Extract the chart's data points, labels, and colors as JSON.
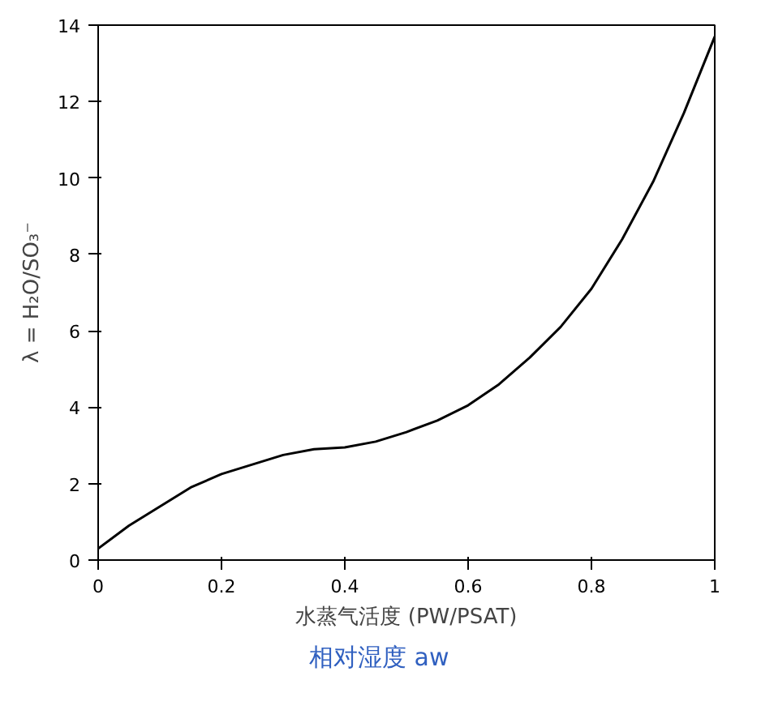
{
  "chart_data": {
    "type": "line",
    "xlabel": "水蒸气活度 (PW/PSAT)",
    "ylabel": "λ = H₂O/SO₃⁻",
    "annotations": [
      "相对湿度 aw"
    ],
    "x": [
      0,
      0.05,
      0.1,
      0.15,
      0.2,
      0.25,
      0.3,
      0.35,
      0.4,
      0.45,
      0.5,
      0.55,
      0.6,
      0.65,
      0.7,
      0.75,
      0.8,
      0.85,
      0.9,
      0.95,
      1.0
    ],
    "series": [
      {
        "color": "#000000",
        "values": [
          0.3,
          0.9,
          1.4,
          1.9,
          2.25,
          2.5,
          2.75,
          2.9,
          2.95,
          3.1,
          3.35,
          3.65,
          4.05,
          4.6,
          5.3,
          6.1,
          7.1,
          8.4,
          9.9,
          11.7,
          13.7
        ]
      }
    ],
    "xlim": [
      0,
      1
    ],
    "ylim": [
      0,
      14
    ],
    "xticks": [
      0,
      0.2,
      0.4,
      0.6,
      0.8,
      1
    ],
    "yticks": [
      0,
      2,
      4,
      6,
      8,
      10,
      12,
      14
    ],
    "grid": false,
    "marker": "none",
    "line_style": "solid"
  }
}
